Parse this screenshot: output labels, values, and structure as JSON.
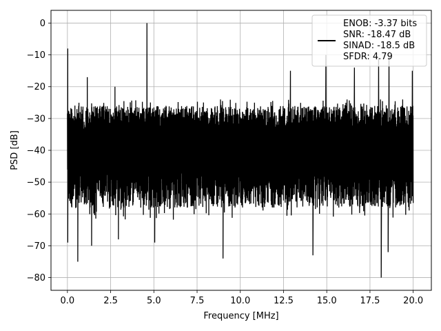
{
  "chart_data": {
    "type": "line",
    "title": "",
    "xlabel": "Frequency [MHz]",
    "ylabel": "PSD [dB]",
    "xlim": [
      -0.95,
      21.05
    ],
    "ylim": [
      -84,
      4
    ],
    "xticks": [
      0.0,
      2.5,
      5.0,
      7.5,
      10.0,
      12.5,
      15.0,
      17.5,
      20.0
    ],
    "xtick_labels": [
      "0.0",
      "2.5",
      "5.0",
      "7.5",
      "10.0",
      "12.5",
      "15.0",
      "17.5",
      "20.0"
    ],
    "yticks": [
      0,
      -10,
      -20,
      -30,
      -40,
      -50,
      -60,
      -70,
      -80
    ],
    "ytick_labels": [
      "0",
      "−10",
      "−20",
      "−30",
      "−40",
      "−50",
      "−60",
      "−70",
      "−80"
    ],
    "grid": true,
    "legend_position": "top-right",
    "series": [
      {
        "name": "",
        "color": "#000000",
        "noise_floor": {
          "x_range": [
            0.0,
            20.0
          ],
          "upper_db": -24,
          "lower_db": -58,
          "mean_db": -38
        },
        "peaks": [
          {
            "x": 0.02,
            "y": -8
          },
          {
            "x": 1.15,
            "y": -17
          },
          {
            "x": 2.75,
            "y": -20
          },
          {
            "x": 4.6,
            "y": 0
          },
          {
            "x": 12.9,
            "y": -15
          },
          {
            "x": 14.95,
            "y": -10
          },
          {
            "x": 16.6,
            "y": -14
          },
          {
            "x": 18.0,
            "y": -11
          },
          {
            "x": 18.6,
            "y": -9
          },
          {
            "x": 19.95,
            "y": -15
          }
        ],
        "dips": [
          {
            "x": 0.02,
            "y": -69
          },
          {
            "x": 0.6,
            "y": -75
          },
          {
            "x": 1.4,
            "y": -70
          },
          {
            "x": 2.95,
            "y": -68
          },
          {
            "x": 5.05,
            "y": -69
          },
          {
            "x": 9.0,
            "y": -74
          },
          {
            "x": 14.2,
            "y": -73
          },
          {
            "x": 18.15,
            "y": -80
          },
          {
            "x": 18.55,
            "y": -72
          }
        ]
      }
    ],
    "legend_entries": [
      "ENOB: -3.37 bits",
      "SNR: -18.47 dB",
      "SINAD: -18.5 dB",
      "SFDR: 4.79"
    ]
  }
}
